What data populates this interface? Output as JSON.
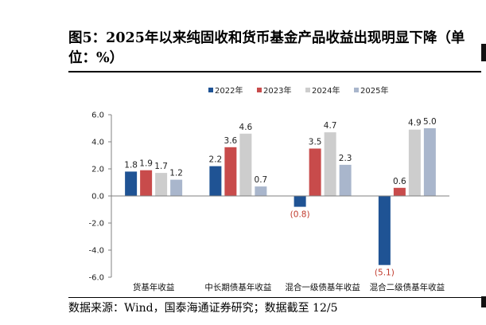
{
  "figure": {
    "title": "图5：2025年以来纯固收和货币基金产品收益出现明显下降（单位：%）",
    "source": "数据来源：Wind，国泰海通证券研究；数据截至 12/5"
  },
  "colors": {
    "2022年": "#1f5394",
    "2023年": "#c84b4b",
    "2024年": "#cdcdcd",
    "2025年": "#a9b6cc",
    "negative_label": "#c0392b"
  },
  "chart_data": {
    "type": "bar",
    "title": "",
    "xlabel": "",
    "ylabel": "",
    "categories": [
      "货基年收益",
      "中长期债基年收益",
      "混合一级债基年收益",
      "混合二级债基年收益"
    ],
    "series": [
      {
        "name": "2022年",
        "values": [
          1.8,
          2.2,
          -0.8,
          -5.1
        ],
        "labels": [
          "1.8",
          "2.2",
          "(0.8)",
          "(5.1)"
        ]
      },
      {
        "name": "2023年",
        "values": [
          1.9,
          3.6,
          3.5,
          0.6
        ],
        "labels": [
          "1.9",
          "3.6",
          "3.5",
          "0.6"
        ]
      },
      {
        "name": "2024年",
        "values": [
          1.7,
          4.6,
          4.7,
          4.9
        ],
        "labels": [
          "1.7",
          "4.6",
          "4.7",
          "4.9"
        ]
      },
      {
        "name": "2025年",
        "values": [
          1.2,
          0.7,
          2.3,
          5.0
        ],
        "labels": [
          "1.2",
          "0.7",
          "2.3",
          "5.0"
        ]
      }
    ],
    "y_ticks": [
      "6.0",
      "4.0",
      "2.0",
      "0.0",
      "-2.0",
      "-4.0",
      "-6.0"
    ],
    "ylim": [
      -6,
      6
    ],
    "grid": false,
    "legend_position": "top-center"
  }
}
